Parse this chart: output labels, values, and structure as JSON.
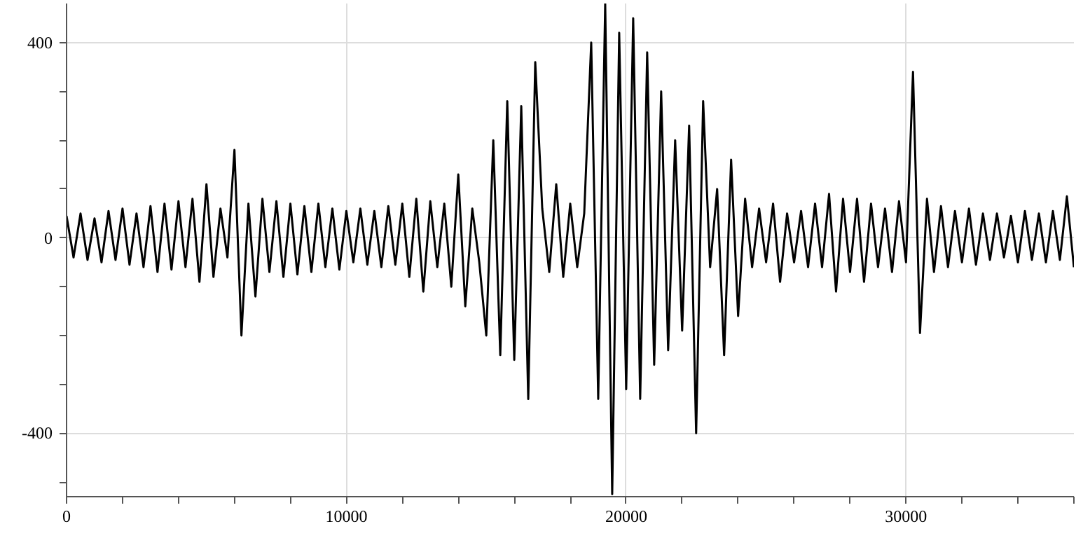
{
  "chart_data": {
    "type": "line",
    "color": "#000000",
    "x": [
      0,
      250,
      500,
      750,
      1000,
      1250,
      1500,
      1750,
      2000,
      2250,
      2500,
      2750,
      3000,
      3250,
      3500,
      3750,
      4000,
      4250,
      4500,
      4750,
      5000,
      5250,
      5500,
      5750,
      6000,
      6250,
      6500,
      6750,
      7000,
      7250,
      7500,
      7750,
      8000,
      8250,
      8500,
      8750,
      9000,
      9250,
      9500,
      9750,
      10000,
      10250,
      10500,
      10750,
      11000,
      11250,
      11500,
      11750,
      12000,
      12250,
      12500,
      12750,
      13000,
      13250,
      13500,
      13750,
      14000,
      14250,
      14500,
      14750,
      15000,
      15250,
      15500,
      15750,
      16000,
      16250,
      16500,
      16750,
      17000,
      17250,
      17500,
      17750,
      18000,
      18250,
      18500,
      18750,
      19000,
      19250,
      19500,
      19750,
      20000,
      20250,
      20500,
      20750,
      21000,
      21250,
      21500,
      21750,
      22000,
      22250,
      22500,
      22750,
      23000,
      23250,
      23500,
      23750,
      24000,
      24250,
      24500,
      24750,
      25000,
      25250,
      25500,
      25750,
      26000,
      26250,
      26500,
      26750,
      27000,
      27250,
      27500,
      27750,
      28000,
      28250,
      28500,
      28750,
      29000,
      29250,
      29500,
      29750,
      30000,
      30250,
      30500,
      30750,
      31000,
      31250,
      31500,
      31750,
      32000,
      32250,
      32500,
      32750,
      33000,
      33250,
      33500,
      33750,
      34000,
      34250,
      34500,
      34750,
      35000,
      35250,
      35500,
      35750,
      36000
    ],
    "values": [
      45,
      -40,
      50,
      -45,
      40,
      -50,
      55,
      -45,
      60,
      -55,
      50,
      -60,
      65,
      -70,
      70,
      -65,
      75,
      -60,
      80,
      -90,
      110,
      -80,
      60,
      -40,
      180,
      -200,
      70,
      -120,
      80,
      -70,
      75,
      -80,
      70,
      -75,
      65,
      -70,
      70,
      -60,
      60,
      -65,
      55,
      -50,
      60,
      -55,
      55,
      -60,
      65,
      -55,
      70,
      -80,
      80,
      -110,
      75,
      -60,
      70,
      -100,
      130,
      -140,
      60,
      -50,
      -200,
      200,
      -240,
      280,
      -250,
      270,
      -330,
      360,
      60,
      -70,
      110,
      -80,
      70,
      -60,
      50,
      400,
      -330,
      480,
      -525,
      420,
      -310,
      450,
      -330,
      380,
      -260,
      300,
      -230,
      200,
      -190,
      230,
      -400,
      280,
      -60,
      100,
      -240,
      160,
      -160,
      80,
      -60,
      60,
      -50,
      70,
      -90,
      50,
      -50,
      55,
      -60,
      70,
      -60,
      90,
      -110,
      80,
      -70,
      80,
      -90,
      70,
      -60,
      60,
      -70,
      75,
      -50,
      340,
      -195,
      80,
      -70,
      65,
      -60,
      55,
      -50,
      60,
      -55,
      50,
      -45,
      50,
      -40,
      45,
      -50,
      55,
      -45,
      50,
      -50,
      55,
      -45,
      85,
      -60
    ],
    "xlim": [
      0,
      36000
    ],
    "ylim": [
      -530,
      480
    ],
    "xticks": [
      0,
      {
        "value": 2000,
        "label": null
      },
      {
        "value": 4000,
        "label": null
      },
      {
        "value": 6000,
        "label": null
      },
      {
        "value": 8000,
        "label": null
      },
      10000,
      {
        "value": 12000,
        "label": null
      },
      {
        "value": 14000,
        "label": null
      },
      {
        "value": 16000,
        "label": null
      },
      {
        "value": 18000,
        "label": null
      },
      20000,
      {
        "value": 22000,
        "label": null
      },
      {
        "value": 24000,
        "label": null
      },
      {
        "value": 26000,
        "label": null
      },
      {
        "value": 28000,
        "label": null
      },
      30000,
      {
        "value": 32000,
        "label": null
      },
      {
        "value": 34000,
        "label": null
      },
      {
        "value": 36000,
        "label": null
      }
    ],
    "yticks": [
      {
        "value": -500,
        "label": null
      },
      -400,
      {
        "value": -300,
        "label": null
      },
      {
        "value": -200,
        "label": null
      },
      {
        "value": -100,
        "label": null
      },
      0,
      {
        "value": 100,
        "label": null
      },
      {
        "value": 200,
        "label": null
      },
      {
        "value": 300,
        "label": null
      },
      400
    ],
    "grid": true
  }
}
